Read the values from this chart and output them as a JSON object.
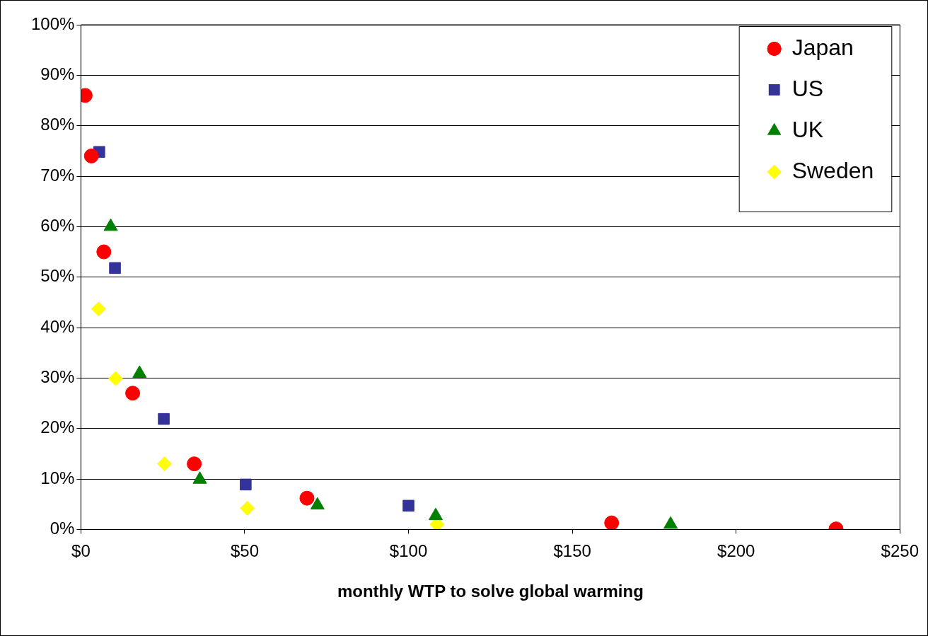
{
  "chart_data": {
    "type": "scatter",
    "xlabel": "monthly WTP to solve global warming",
    "xlim": [
      0,
      250
    ],
    "xticks": [
      {
        "value": 0,
        "label": "$0"
      },
      {
        "value": 50,
        "label": "$50"
      },
      {
        "value": 100,
        "label": "$100"
      },
      {
        "value": 150,
        "label": "$150"
      },
      {
        "value": 200,
        "label": "$200"
      },
      {
        "value": 250,
        "label": "$250"
      }
    ],
    "ylim": [
      0,
      100
    ],
    "yticks": [
      {
        "value": 0,
        "label": "0%"
      },
      {
        "value": 10,
        "label": "10%"
      },
      {
        "value": 20,
        "label": "20%"
      },
      {
        "value": 30,
        "label": "30%"
      },
      {
        "value": 40,
        "label": "40%"
      },
      {
        "value": 50,
        "label": "50%"
      },
      {
        "value": 60,
        "label": "60%"
      },
      {
        "value": 70,
        "label": "70%"
      },
      {
        "value": 80,
        "label": "80%"
      },
      {
        "value": 90,
        "label": "90%"
      },
      {
        "value": 100,
        "label": "100%"
      }
    ],
    "grid": "y",
    "legend": "top right",
    "series": [
      {
        "name": "Japan",
        "color": "#ff0000",
        "marker": "circle",
        "x": [
          1.3,
          3.2,
          7,
          15.8,
          34.6,
          69,
          162,
          230.5
        ],
        "values": [
          86,
          74,
          55,
          27,
          13,
          6.2,
          1.3,
          0.1
        ]
      },
      {
        "name": "US",
        "color": "#333399",
        "marker": "square",
        "x": [
          5.6,
          10.4,
          25.3,
          50.3,
          100
        ],
        "values": [
          74.8,
          51.8,
          21.9,
          8.9,
          4.7
        ]
      },
      {
        "name": "UK",
        "color": "#008000",
        "marker": "triangle",
        "x": [
          9.1,
          17.9,
          36.3,
          72.2,
          108.3,
          180
        ],
        "values": [
          60,
          30.9,
          9.9,
          4.8,
          2.7,
          1.0
        ]
      },
      {
        "name": "Sweden",
        "color": "#ffff00",
        "marker": "diamond",
        "x": [
          5.4,
          10.6,
          25.5,
          50.8,
          108.7
        ],
        "values": [
          43.7,
          29.9,
          13,
          4.2,
          1.0
        ]
      }
    ]
  }
}
